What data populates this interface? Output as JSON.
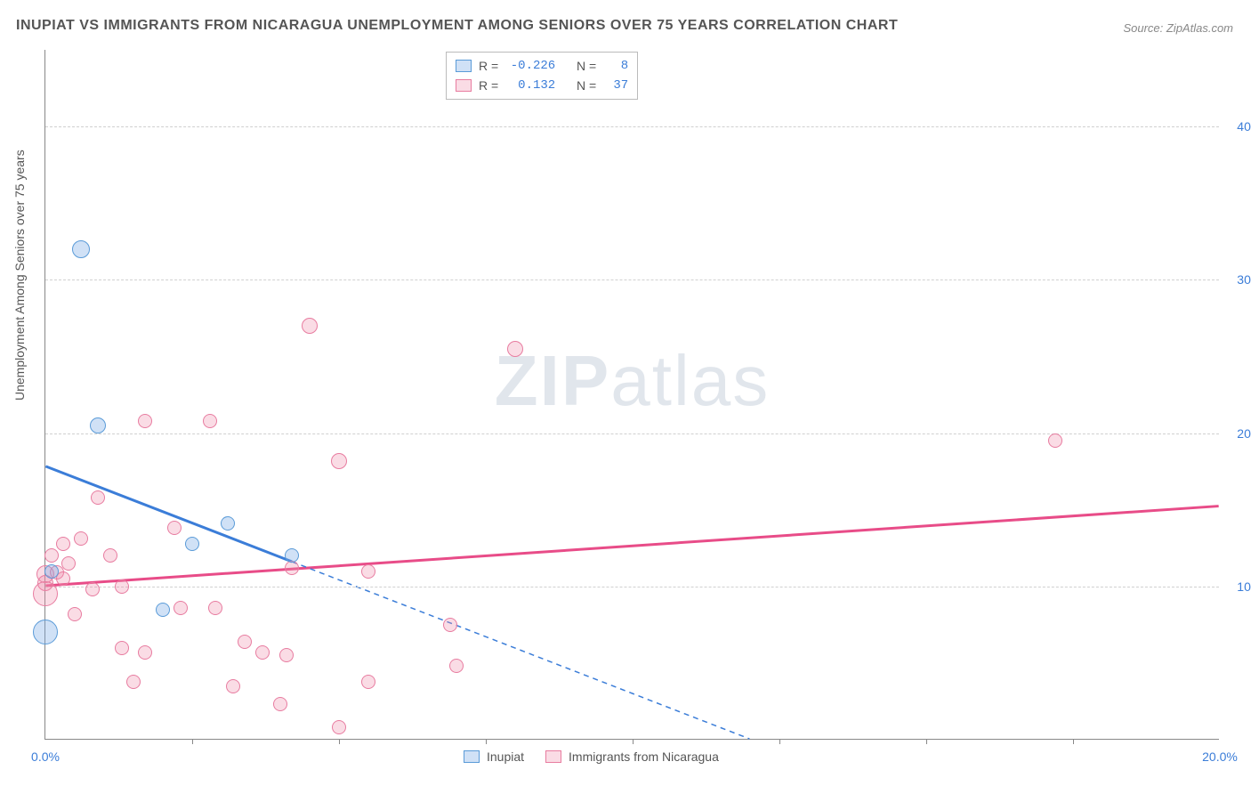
{
  "title": "INUPIAT VS IMMIGRANTS FROM NICARAGUA UNEMPLOYMENT AMONG SENIORS OVER 75 YEARS CORRELATION CHART",
  "source": "Source: ZipAtlas.com",
  "ylabel": "Unemployment Among Seniors over 75 years",
  "watermark_a": "ZIP",
  "watermark_b": "atlas",
  "chart": {
    "type": "scatter",
    "xlim": [
      0,
      20
    ],
    "ylim": [
      0,
      45
    ],
    "xtick_labels": [
      {
        "v": 0,
        "label": "0.0%"
      },
      {
        "v": 20,
        "label": "20.0%"
      }
    ],
    "xticks_minor": [
      2.5,
      5,
      7.5,
      10,
      12.5,
      15,
      17.5
    ],
    "ytick_labels": [
      {
        "v": 10,
        "label": "10.0%"
      },
      {
        "v": 20,
        "label": "20.0%"
      },
      {
        "v": 30,
        "label": "30.0%"
      },
      {
        "v": 40,
        "label": "40.0%"
      }
    ],
    "grid_color": "#d0d0d0",
    "background_color": "#ffffff"
  },
  "series": {
    "inupiat": {
      "label": "Inupiat",
      "fill": "rgba(120,170,230,0.35)",
      "stroke": "#5a9bd8",
      "r_value": "-0.226",
      "n_value": "8",
      "trend": {
        "x1": 0,
        "y1": 17.8,
        "x2": 12,
        "y2": 0,
        "color": "#3b7dd8",
        "width": 3,
        "solid_until_x": 4.2
      },
      "points": [
        {
          "x": 0.6,
          "y": 32.0,
          "r": 10
        },
        {
          "x": 0.9,
          "y": 20.5,
          "r": 9
        },
        {
          "x": 2.5,
          "y": 12.8,
          "r": 8
        },
        {
          "x": 3.1,
          "y": 14.1,
          "r": 8
        },
        {
          "x": 2.0,
          "y": 8.5,
          "r": 8
        },
        {
          "x": 4.2,
          "y": 12.0,
          "r": 8
        },
        {
          "x": 0.0,
          "y": 7.0,
          "r": 14
        },
        {
          "x": 0.1,
          "y": 11.0,
          "r": 8
        }
      ]
    },
    "nicaragua": {
      "label": "Immigrants from Nicaragua",
      "fill": "rgba(240,140,170,0.30)",
      "stroke": "#e87ca0",
      "r_value": "0.132",
      "n_value": "37",
      "trend": {
        "x1": 0,
        "y1": 10.0,
        "x2": 20,
        "y2": 15.2,
        "color": "#e84c88",
        "width": 3
      },
      "points": [
        {
          "x": 4.5,
          "y": 27.0,
          "r": 9
        },
        {
          "x": 8.0,
          "y": 25.5,
          "r": 9
        },
        {
          "x": 1.7,
          "y": 20.8,
          "r": 8
        },
        {
          "x": 2.8,
          "y": 20.8,
          "r": 8
        },
        {
          "x": 17.2,
          "y": 19.5,
          "r": 8
        },
        {
          "x": 5.0,
          "y": 18.2,
          "r": 9
        },
        {
          "x": 0.9,
          "y": 15.8,
          "r": 8
        },
        {
          "x": 2.2,
          "y": 13.8,
          "r": 8
        },
        {
          "x": 0.6,
          "y": 13.1,
          "r": 8
        },
        {
          "x": 0.3,
          "y": 12.8,
          "r": 8
        },
        {
          "x": 1.1,
          "y": 12.0,
          "r": 8
        },
        {
          "x": 0.1,
          "y": 12.0,
          "r": 8
        },
        {
          "x": 4.2,
          "y": 11.2,
          "r": 8
        },
        {
          "x": 5.5,
          "y": 11.0,
          "r": 8
        },
        {
          "x": 0.0,
          "y": 10.8,
          "r": 10
        },
        {
          "x": 0.2,
          "y": 10.9,
          "r": 8
        },
        {
          "x": 0.0,
          "y": 10.2,
          "r": 9
        },
        {
          "x": 0.3,
          "y": 10.5,
          "r": 8
        },
        {
          "x": 1.3,
          "y": 10.0,
          "r": 8
        },
        {
          "x": 0.0,
          "y": 9.5,
          "r": 14
        },
        {
          "x": 2.3,
          "y": 8.6,
          "r": 8
        },
        {
          "x": 2.9,
          "y": 8.6,
          "r": 8
        },
        {
          "x": 0.5,
          "y": 8.2,
          "r": 8
        },
        {
          "x": 6.9,
          "y": 7.5,
          "r": 8
        },
        {
          "x": 3.4,
          "y": 6.4,
          "r": 8
        },
        {
          "x": 1.3,
          "y": 6.0,
          "r": 8
        },
        {
          "x": 1.7,
          "y": 5.7,
          "r": 8
        },
        {
          "x": 3.7,
          "y": 5.7,
          "r": 8
        },
        {
          "x": 4.1,
          "y": 5.5,
          "r": 8
        },
        {
          "x": 7.0,
          "y": 4.8,
          "r": 8
        },
        {
          "x": 1.5,
          "y": 3.8,
          "r": 8
        },
        {
          "x": 5.5,
          "y": 3.8,
          "r": 8
        },
        {
          "x": 4.0,
          "y": 2.3,
          "r": 8
        },
        {
          "x": 3.2,
          "y": 3.5,
          "r": 8
        },
        {
          "x": 5.0,
          "y": 0.8,
          "r": 8
        },
        {
          "x": 0.4,
          "y": 11.5,
          "r": 8
        },
        {
          "x": 0.8,
          "y": 9.8,
          "r": 8
        }
      ]
    }
  },
  "legend_top": {
    "r_label": "R =",
    "n_label": "N ="
  }
}
